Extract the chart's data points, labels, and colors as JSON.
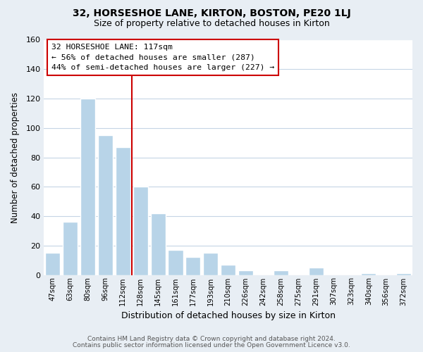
{
  "title1": "32, HORSESHOE LANE, KIRTON, BOSTON, PE20 1LJ",
  "title2": "Size of property relative to detached houses in Kirton",
  "xlabel": "Distribution of detached houses by size in Kirton",
  "ylabel": "Number of detached properties",
  "bar_labels": [
    "47sqm",
    "63sqm",
    "80sqm",
    "96sqm",
    "112sqm",
    "128sqm",
    "145sqm",
    "161sqm",
    "177sqm",
    "193sqm",
    "210sqm",
    "226sqm",
    "242sqm",
    "258sqm",
    "275sqm",
    "291sqm",
    "307sqm",
    "323sqm",
    "340sqm",
    "356sqm",
    "372sqm"
  ],
  "bar_values": [
    15,
    36,
    120,
    95,
    87,
    60,
    42,
    17,
    12,
    15,
    7,
    3,
    0,
    3,
    0,
    5,
    0,
    0,
    1,
    0,
    1
  ],
  "bar_color": "#b8d4e8",
  "vline_color": "#cc0000",
  "vline_x": 4.5,
  "ylim": [
    0,
    160
  ],
  "yticks": [
    0,
    20,
    40,
    60,
    80,
    100,
    120,
    140,
    160
  ],
  "annotation_title": "32 HORSESHOE LANE: 117sqm",
  "annotation_line1": "← 56% of detached houses are smaller (287)",
  "annotation_line2": "44% of semi-detached houses are larger (227) →",
  "annotation_box_color": "#ffffff",
  "annotation_box_edge": "#cc0000",
  "footer1": "Contains HM Land Registry data © Crown copyright and database right 2024.",
  "footer2": "Contains public sector information licensed under the Open Government Licence v3.0.",
  "bg_color": "#e8eef4",
  "plot_bg_color": "#ffffff",
  "grid_color": "#c5d5e5",
  "title1_fontsize": 10,
  "title2_fontsize": 9,
  "ylabel_fontsize": 8.5,
  "xlabel_fontsize": 9
}
